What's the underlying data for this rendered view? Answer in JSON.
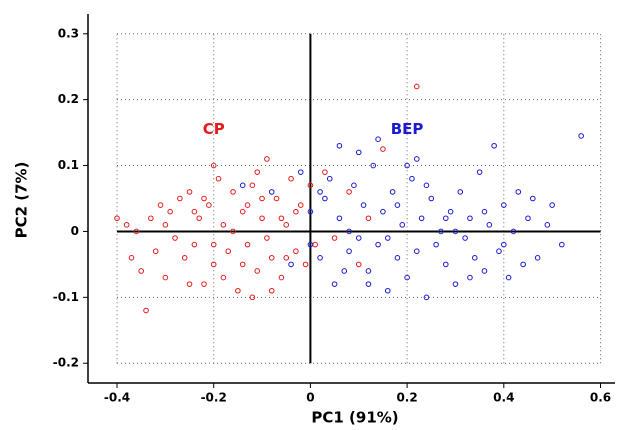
{
  "chart_data": {
    "type": "scatter",
    "xlabel": "PC1 (91%)",
    "ylabel": "PC2 (7%)",
    "xlim": [
      -0.46,
      0.63
    ],
    "ylim": [
      -0.23,
      0.33
    ],
    "xticks": [
      -0.4,
      -0.2,
      0,
      0.2,
      0.4,
      0.6
    ],
    "yticks": [
      -0.2,
      -0.1,
      0,
      0.1,
      0.2,
      0.3
    ],
    "grid": true,
    "zero_lines": true,
    "annotations": [
      {
        "text": "CP",
        "x": -0.2,
        "y": 0.155,
        "color": "#e41a1c"
      },
      {
        "text": "BEP",
        "x": 0.2,
        "y": 0.155,
        "color": "#1a1ad0"
      }
    ],
    "series": [
      {
        "color": "#e41a1c",
        "x": [
          -0.4,
          -0.38,
          -0.37,
          -0.35,
          -0.34,
          -0.33,
          -0.32,
          -0.31,
          -0.3,
          -0.29,
          -0.28,
          -0.27,
          -0.26,
          -0.25,
          -0.24,
          -0.23,
          -0.22,
          -0.21,
          -0.2,
          -0.19,
          -0.18,
          -0.17,
          -0.16,
          -0.15,
          -0.14,
          -0.13,
          -0.12,
          -0.11,
          -0.1,
          -0.09,
          -0.08,
          -0.07,
          -0.06,
          -0.05,
          -0.04,
          -0.03,
          -0.02,
          -0.01,
          0.0,
          0.01,
          0.03,
          0.05,
          0.15,
          0.22,
          -0.3,
          -0.22,
          -0.18,
          -0.12,
          -0.1,
          -0.06,
          -0.14,
          -0.2,
          -0.25,
          -0.08,
          -0.03,
          -0.16,
          -0.24,
          -0.11,
          -0.05,
          0.08,
          0.1,
          0.12,
          -0.36,
          -0.2,
          -0.09,
          -0.13
        ],
        "values": [
          0.02,
          0.01,
          -0.04,
          -0.06,
          -0.12,
          0.02,
          -0.03,
          0.04,
          -0.07,
          0.03,
          -0.01,
          0.05,
          -0.04,
          0.06,
          -0.02,
          0.02,
          -0.08,
          0.04,
          -0.05,
          0.08,
          0.01,
          -0.03,
          0.06,
          -0.09,
          0.03,
          -0.02,
          0.07,
          -0.06,
          0.02,
          0.11,
          -0.04,
          0.05,
          -0.07,
          0.01,
          0.08,
          -0.03,
          0.04,
          -0.05,
          0.07,
          -0.02,
          0.09,
          -0.01,
          0.125,
          0.22,
          0.01,
          0.05,
          -0.07,
          -0.1,
          0.05,
          0.02,
          -0.05,
          0.1,
          -0.08,
          -0.09,
          0.03,
          0.0,
          0.03,
          0.09,
          -0.04,
          0.06,
          -0.05,
          0.02,
          0.0,
          -0.02,
          -0.01,
          0.04
        ]
      },
      {
        "color": "#1a1ad0",
        "x": [
          -0.02,
          0.0,
          0.02,
          0.03,
          0.05,
          0.06,
          0.08,
          0.09,
          0.1,
          0.11,
          0.12,
          0.13,
          0.14,
          0.15,
          0.16,
          0.17,
          0.18,
          0.19,
          0.2,
          0.21,
          0.22,
          0.23,
          0.24,
          0.25,
          0.26,
          0.27,
          0.28,
          0.29,
          0.3,
          0.31,
          0.32,
          0.33,
          0.34,
          0.35,
          0.36,
          0.37,
          0.38,
          0.39,
          0.4,
          0.41,
          0.42,
          0.43,
          0.44,
          0.45,
          0.47,
          0.49,
          0.5,
          0.52,
          0.56,
          0.06,
          0.1,
          0.14,
          0.2,
          -0.04,
          0.0,
          0.04,
          0.07,
          0.12,
          0.18,
          0.24,
          0.28,
          0.33,
          0.36,
          -0.08,
          -0.14,
          0.02,
          0.08,
          0.16,
          0.22,
          0.3,
          0.4,
          0.46
        ],
        "values": [
          0.09,
          0.03,
          -0.04,
          0.05,
          -0.08,
          0.02,
          -0.03,
          0.07,
          -0.01,
          0.04,
          -0.06,
          0.1,
          -0.02,
          0.03,
          -0.09,
          0.06,
          -0.04,
          0.01,
          -0.07,
          0.08,
          -0.03,
          0.02,
          -0.1,
          0.05,
          -0.02,
          0.0,
          -0.05,
          0.03,
          -0.08,
          0.06,
          -0.01,
          0.02,
          -0.04,
          0.09,
          -0.06,
          0.01,
          0.13,
          -0.03,
          0.04,
          -0.07,
          0.0,
          0.06,
          -0.05,
          0.02,
          -0.04,
          0.01,
          0.04,
          -0.02,
          0.145,
          0.13,
          0.12,
          0.14,
          0.1,
          -0.05,
          -0.02,
          0.08,
          -0.06,
          -0.08,
          0.04,
          0.07,
          0.02,
          -0.07,
          0.03,
          0.06,
          0.07,
          0.06,
          0.0,
          -0.01,
          0.11,
          0.0,
          -0.02,
          0.05
        ]
      }
    ]
  }
}
